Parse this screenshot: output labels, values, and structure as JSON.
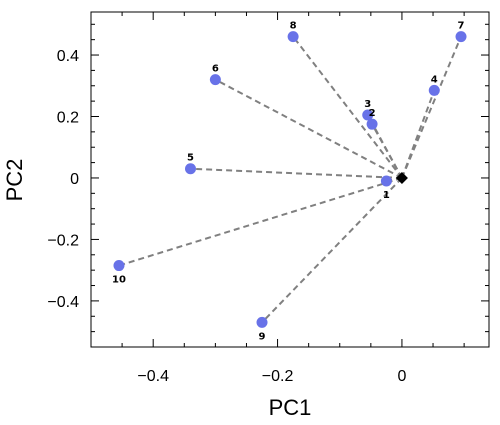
{
  "chart_data": {
    "type": "scatter",
    "title": "",
    "xlabel": "PC1",
    "ylabel": "PC2",
    "xlim": [
      -0.5,
      0.14
    ],
    "ylim": [
      -0.55,
      0.54
    ],
    "xticks": [
      -0.4,
      -0.2,
      0
    ],
    "xtick_labels": [
      "−0.4",
      "−0.2",
      "0"
    ],
    "yticks": [
      -0.4,
      -0.2,
      0,
      0.2,
      0.4
    ],
    "ytick_labels": [
      "−0.4",
      "−0.2",
      "0",
      "0.2",
      "0.4"
    ],
    "grid": false,
    "legend": "none",
    "origin": [
      0,
      0
    ],
    "point_color": "#6872e8",
    "line_color": "#808080",
    "origin_marker_color": "#000000",
    "points": [
      {
        "label": "1",
        "x": -0.025,
        "y": -0.01
      },
      {
        "label": "2",
        "x": -0.048,
        "y": 0.175
      },
      {
        "label": "3",
        "x": -0.055,
        "y": 0.205
      },
      {
        "label": "4",
        "x": 0.052,
        "y": 0.285
      },
      {
        "label": "5",
        "x": -0.34,
        "y": 0.03
      },
      {
        "label": "6",
        "x": -0.3,
        "y": 0.32
      },
      {
        "label": "7",
        "x": 0.095,
        "y": 0.46
      },
      {
        "label": "8",
        "x": -0.175,
        "y": 0.46
      },
      {
        "label": "9",
        "x": -0.225,
        "y": -0.47
      },
      {
        "label": "10",
        "x": -0.455,
        "y": -0.285
      }
    ]
  }
}
